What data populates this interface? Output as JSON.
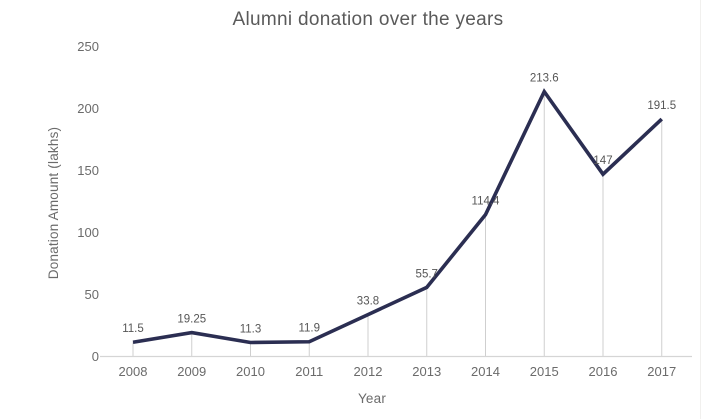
{
  "chart_data": {
    "type": "line",
    "title": "Alumni donation over the years",
    "xlabel": "Year",
    "ylabel": "Donation Amount (lakhs)",
    "categories": [
      "2008",
      "2009",
      "2010",
      "2011",
      "2012",
      "2013",
      "2014",
      "2015",
      "2016",
      "2017"
    ],
    "values": [
      11.5,
      19.25,
      11.3,
      11.9,
      33.8,
      55.7,
      114.4,
      213.6,
      147,
      191.5
    ],
    "point_labels": [
      "11.5",
      "19.25",
      "11.3",
      "11.9",
      "33.8",
      "55.7",
      "114.4",
      "213.6",
      "147",
      "191.5"
    ],
    "ylim": [
      0,
      250
    ],
    "yticks": [
      0,
      50,
      100,
      150,
      200,
      250
    ],
    "legend": "none",
    "grid": "vertical-drop-lines",
    "markers": "none",
    "colors": {
      "line": "#2b2e52",
      "axis": "#d5d5d5",
      "drop_line": "#cfcfcf",
      "title_text": "#5a5a5a",
      "tick_text": "#6b6b6b",
      "data_label_text": "#565656",
      "background": "#ffffff"
    }
  }
}
